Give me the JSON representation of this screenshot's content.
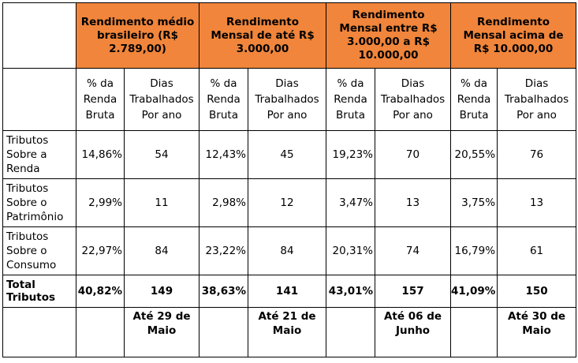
{
  "groups": [
    {
      "lines": [
        "Rendimento médio",
        "brasileiro (R$",
        "2.789,00)"
      ]
    },
    {
      "lines": [
        "Rendimento",
        "Mensal de até R$",
        "3.000,00"
      ]
    },
    {
      "lines": [
        "Rendimento",
        "Mensal entre R$",
        "3.000,00 a R$",
        "10.000,00"
      ]
    },
    {
      "lines": [
        "Rendimento",
        "Mensal acima de",
        "R$ 10.000,00"
      ]
    }
  ],
  "subheaders": {
    "pct": [
      "% da",
      "Renda",
      "Bruta"
    ],
    "days": [
      "Dias",
      "Trabalhados",
      "Por ano"
    ]
  },
  "rows": [
    {
      "label": [
        "Tributos",
        "Sobre a",
        "Renda"
      ],
      "values": [
        "14,86%",
        "54",
        "12,43%",
        "45",
        "19,23%",
        "70",
        "20,55%",
        "76"
      ]
    },
    {
      "label": [
        "Tributos",
        "Sobre o",
        "Patrimônio"
      ],
      "values": [
        "2,99%",
        "11",
        "2,98%",
        "12",
        "3,47%",
        "13",
        "3,75%",
        "13"
      ]
    },
    {
      "label": [
        "Tributos",
        "Sobre o",
        "Consumo"
      ],
      "values": [
        "22,97%",
        "84",
        "23,22%",
        "84",
        "20,31%",
        "74",
        "16,79%",
        "61"
      ]
    }
  ],
  "total": {
    "label": [
      "Total",
      "Tributos"
    ],
    "values": [
      "40,82%",
      "149",
      "38,63%",
      "141",
      "43,01%",
      "157",
      "41,09%",
      "150"
    ]
  },
  "dates": [
    [
      "Até 29 de",
      "Maio"
    ],
    [
      "Até 21 de",
      "Maio"
    ],
    [
      "Até 06 de",
      "Junho"
    ],
    [
      "Até 30 de",
      "Maio"
    ]
  ]
}
